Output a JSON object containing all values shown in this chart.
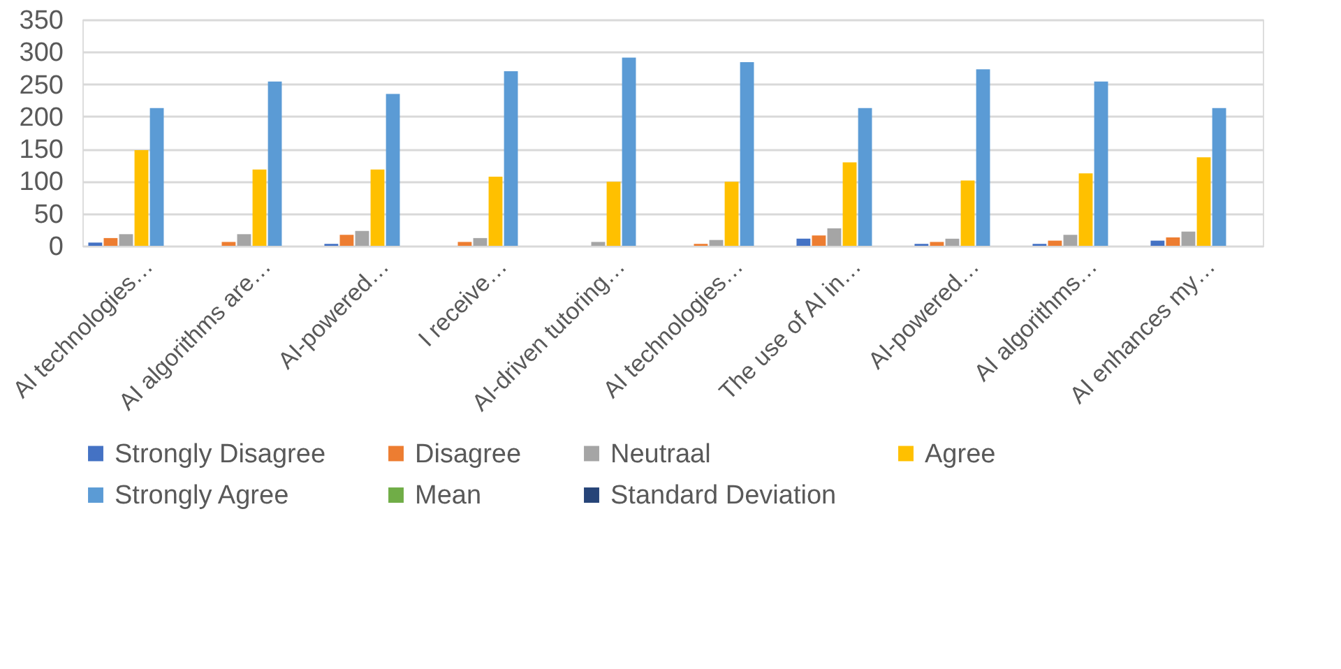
{
  "chart_data": {
    "type": "bar",
    "categories": [
      "AI technologies…",
      "AI algorithms are…",
      "AI-powered…",
      "I receive…",
      "AI-driven tutoring…",
      "AI technologies…",
      "The use of AI in…",
      "AI-powered…",
      "AI algorithms…",
      "AI enhances my…"
    ],
    "series": [
      {
        "name": "Strongly Disagree",
        "color": "#4472c4",
        "values": [
          5,
          0,
          3,
          0,
          0,
          0,
          11,
          3,
          3,
          8
        ]
      },
      {
        "name": "Disagree",
        "color": "#ed7d31",
        "values": [
          12,
          6,
          17,
          6,
          0,
          3,
          16,
          6,
          8,
          13
        ]
      },
      {
        "name": "Neutraal",
        "color": "#a5a5a5",
        "values": [
          18,
          18,
          23,
          12,
          6,
          9,
          27,
          11,
          17,
          22
        ]
      },
      {
        "name": "Agree",
        "color": "#ffc000",
        "values": [
          148,
          118,
          118,
          107,
          99,
          99,
          129,
          101,
          112,
          137
        ]
      },
      {
        "name": "Strongly Agree",
        "color": "#5b9bd5",
        "values": [
          213,
          254,
          235,
          270,
          291,
          284,
          213,
          273,
          254,
          213
        ]
      },
      {
        "name": "Mean",
        "color": "#70ad47",
        "values": [
          null,
          null,
          null,
          null,
          null,
          null,
          null,
          null,
          null,
          null
        ]
      },
      {
        "name": "Standard Deviation",
        "color": "#264478",
        "values": [
          null,
          null,
          null,
          null,
          null,
          null,
          null,
          null,
          null,
          null
        ]
      }
    ],
    "ylim": [
      0,
      350
    ],
    "yticks": [
      0,
      50,
      100,
      150,
      200,
      250,
      300,
      350
    ],
    "grid": "y",
    "legend": "bottom"
  }
}
